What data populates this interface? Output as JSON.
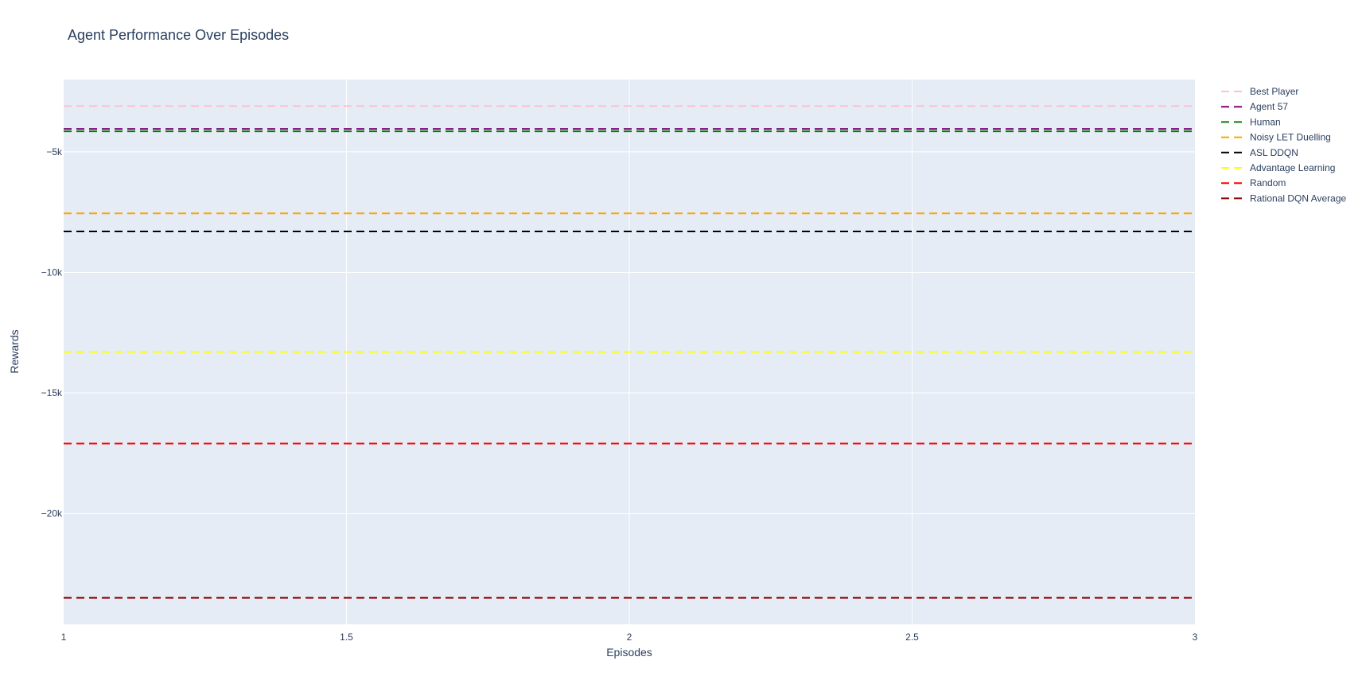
{
  "chart_data": {
    "type": "line",
    "title": "Agent Performance Over Episodes",
    "xlabel": "Episodes",
    "ylabel": "Rewards",
    "x": [
      1,
      2,
      3
    ],
    "xlim": [
      1,
      3
    ],
    "ylim": [
      -24600,
      -2000
    ],
    "x_ticks": [
      1,
      1.5,
      2,
      2.5,
      3
    ],
    "x_tick_labels": [
      "1",
      "1.5",
      "2",
      "2.5",
      "3"
    ],
    "y_ticks": [
      -5000,
      -10000,
      -15000,
      -20000
    ],
    "y_tick_labels": [
      "−5k",
      "−10k",
      "−15k",
      "−20k"
    ],
    "grid": true,
    "legend_position": "right",
    "plot_background": "#e5ecf6",
    "series": [
      {
        "name": "Best Player",
        "color": "#ffc0cb",
        "values": [
          -3100,
          -3100,
          -3100
        ],
        "dash": "dash"
      },
      {
        "name": "Agent 57",
        "color": "#800080",
        "values": [
          -4050,
          -4050,
          -4050
        ],
        "dash": "dash"
      },
      {
        "name": "Human",
        "color": "#008000",
        "values": [
          -4150,
          -4150,
          -4150
        ],
        "dash": "dash"
      },
      {
        "name": "Noisy LET Duelling",
        "color": "#ffa500",
        "values": [
          -7550,
          -7550,
          -7550
        ],
        "dash": "dash"
      },
      {
        "name": "ASL DDQN",
        "color": "#000000",
        "values": [
          -8300,
          -8300,
          -8300
        ],
        "dash": "dash"
      },
      {
        "name": "Advantage Learning",
        "color": "#ffff00",
        "values": [
          -13300,
          -13300,
          -13300
        ],
        "dash": "dash"
      },
      {
        "name": "Random",
        "color": "#ff0000",
        "values": [
          -17100,
          -17100,
          -17100
        ],
        "dash": "dash"
      },
      {
        "name": "Rational DQN Average",
        "color": "#8b0000",
        "values": [
          -23500,
          -23500,
          -23500
        ],
        "dash": "dash"
      }
    ]
  }
}
